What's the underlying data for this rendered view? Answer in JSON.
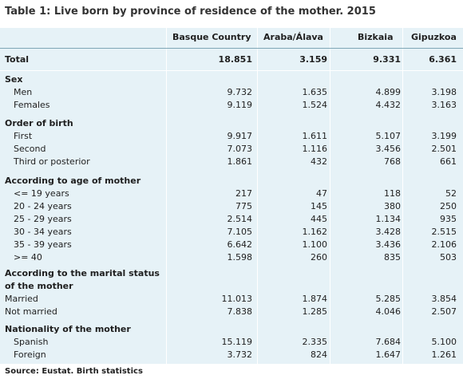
{
  "title": "Table 1: Live born by province of residence of the mother. 2015",
  "columns": [
    "Basque Country",
    "Araba/Álava",
    "Bizkaia",
    "Gipuzkoa"
  ],
  "rows": [
    {
      "label": "Total",
      "values": [
        "18.851",
        "3.159",
        "9.331",
        "6.361"
      ],
      "kind": "total"
    },
    {
      "label": "Sex",
      "values": [],
      "kind": "section"
    },
    {
      "label": "Men",
      "values": [
        "9.732",
        "1.635",
        "4.899",
        "3.198"
      ],
      "kind": "item"
    },
    {
      "label": "Females",
      "values": [
        "9.119",
        "1.524",
        "4.432",
        "3.163"
      ],
      "kind": "item"
    },
    {
      "label": "Order of birth",
      "values": [],
      "kind": "section"
    },
    {
      "label": "First",
      "values": [
        "9.917",
        "1.611",
        "5.107",
        "3.199"
      ],
      "kind": "item"
    },
    {
      "label": "Second",
      "values": [
        "7.073",
        "1.116",
        "3.456",
        "2.501"
      ],
      "kind": "item"
    },
    {
      "label": "Third or posterior",
      "values": [
        "1.861",
        "432",
        "768",
        "661"
      ],
      "kind": "item"
    },
    {
      "label": "According to age of mother",
      "values": [],
      "kind": "section"
    },
    {
      "label": "<= 19 years",
      "values": [
        "217",
        "47",
        "118",
        "52"
      ],
      "kind": "item"
    },
    {
      "label": "20 - 24 years",
      "values": [
        "775",
        "145",
        "380",
        "250"
      ],
      "kind": "item"
    },
    {
      "label": "25 - 29 years",
      "values": [
        "2.514",
        "445",
        "1.134",
        "935"
      ],
      "kind": "item"
    },
    {
      "label": "30 - 34 years",
      "values": [
        "7.105",
        "1.162",
        "3.428",
        "2.515"
      ],
      "kind": "item"
    },
    {
      "label": "35 - 39 years",
      "values": [
        "6.642",
        "1.100",
        "3.436",
        "2.106"
      ],
      "kind": "item"
    },
    {
      "label": ">= 40",
      "values": [
        "1.598",
        "260",
        "835",
        "503"
      ],
      "kind": "item"
    },
    {
      "label": "According to the marital status",
      "values": [],
      "kind": "section"
    },
    {
      "label": "of the mother",
      "values": [],
      "kind": "section"
    },
    {
      "label": "Married",
      "values": [
        "11.013",
        "1.874",
        "5.285",
        "3.854"
      ],
      "kind": "item-flush"
    },
    {
      "label": "Not married",
      "values": [
        "7.838",
        "1.285",
        "4.046",
        "2.507"
      ],
      "kind": "item-flush"
    },
    {
      "label": "Nationality of the mother",
      "values": [],
      "kind": "section"
    },
    {
      "label": "Spanish",
      "values": [
        "15.119",
        "2.335",
        "7.684",
        "5.100"
      ],
      "kind": "item"
    },
    {
      "label": "Foreign",
      "values": [
        "3.732",
        "824",
        "1.647",
        "1.261"
      ],
      "kind": "item"
    }
  ],
  "source": "Source: Eustat. Birth statistics",
  "colors": {
    "table_bg": "#e6f2f7",
    "rule": "#7fa6b6"
  }
}
